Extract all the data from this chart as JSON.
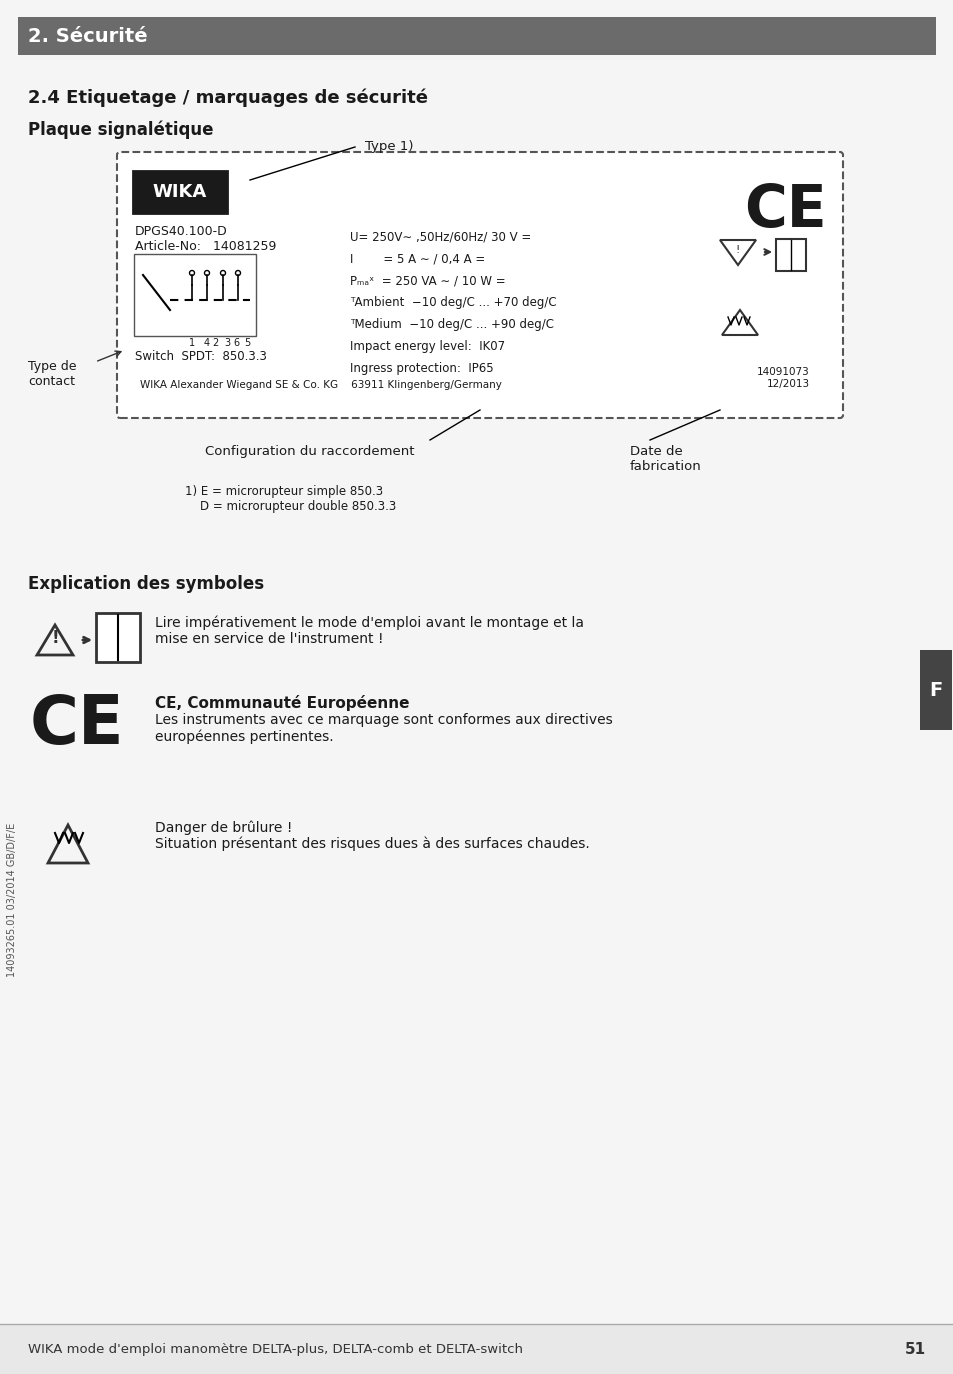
{
  "page_bg": "#f5f5f5",
  "header_bg": "#6b6b6b",
  "header_text": "2. Sécurité",
  "header_text_color": "#ffffff",
  "footer_bg": "#e8e8e8",
  "footer_text": "WIKA mode d'emploi manomètre DELTA-plus, DELTA-comb et DELTA-switch",
  "footer_page": "51",
  "section_title": "2.4 Etiquetage / marquages de sécurité",
  "subsection_title": "Plaque signalétique",
  "label_box_bg": "#ffffff",
  "label_box_border": "#333333",
  "wika_logo_bg": "#1a1a1a",
  "wika_logo_text": "WIKA",
  "model_text": "DPGS40.100-D",
  "article_text": "Article-No:   14081259",
  "specs_lines": [
    "U= 250V∼ ,50Hz/60Hz/ 30 V =",
    "I        = 5 A ∼ / 0,4 A =",
    "Pₘₐˣ  = 250 VA ∼ / 10 W =",
    "ᵀAmbient  −10 deg/C ... +70 deg/C",
    "ᵀMedium  −10 deg/C ... +90 deg/C",
    "Impact energy level:  IK07",
    "Ingress protection:  IP65"
  ],
  "switch_text": "Switch  SPDT:  850.3.3",
  "contact_label": "Type de\ncontact",
  "config_label": "Configuration du raccordement",
  "date_label": "Date de\nfabrication",
  "type_label": "Type 1)",
  "ref_nums": "14091073\n12/2013",
  "wika_address": "WIKA Alexander Wiegand SE & Co. KG    63911 Klingenberg/Germany",
  "footnote": "1) E = microrupteur simple 850.3\n    D = microrupteur double 850.3.3",
  "explication_title": "Explication des symboles",
  "symbol1_text": "Lire impérativement le mode d'emploi avant le montage et la\nmise en service de l'instrument !",
  "ce_title": "CE, Communauté Européenne",
  "ce_text": "Les instruments avec ce marquage sont conformes aux directives\neuropéennes pertinentes.",
  "hot_text": "Danger de brûlure !\nSituation présentant des risques dues à des surfaces chaudes.",
  "side_text": "14093265.01 03/2014 GB/D/F/E",
  "tab_letter": "F",
  "tab_bg": "#444444",
  "tab_text_color": "#ffffff"
}
